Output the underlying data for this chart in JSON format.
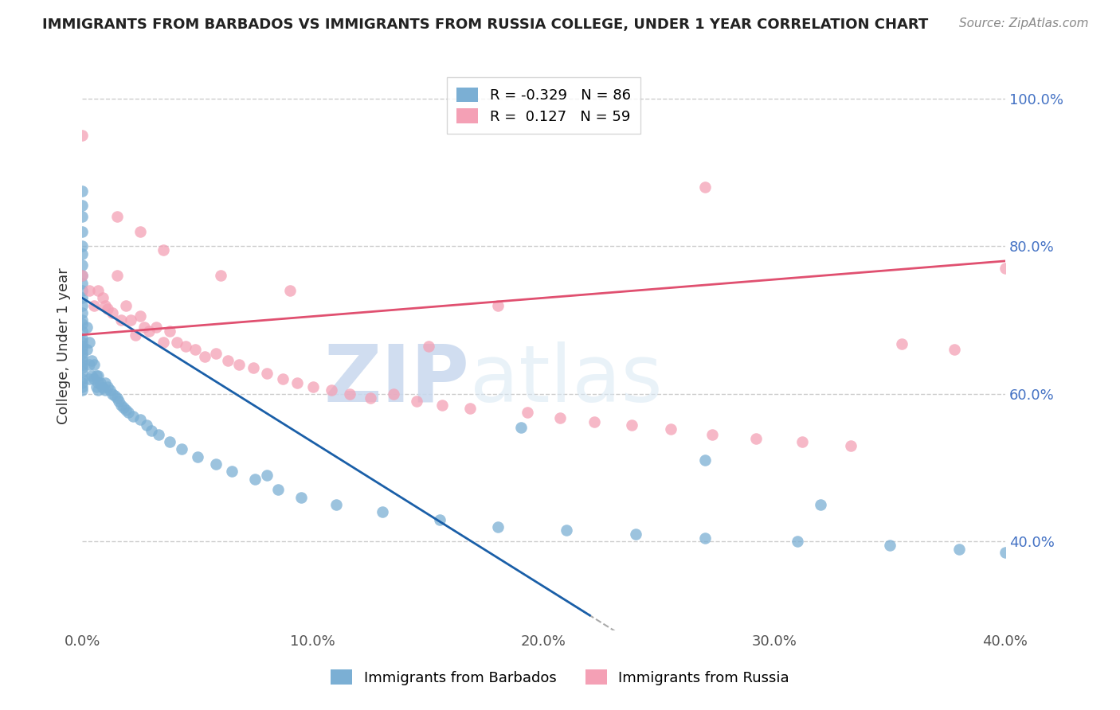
{
  "title": "IMMIGRANTS FROM BARBADOS VS IMMIGRANTS FROM RUSSIA COLLEGE, UNDER 1 YEAR CORRELATION CHART",
  "source": "Source: ZipAtlas.com",
  "ylabel": "College, Under 1 year",
  "xlim": [
    0.0,
    0.4
  ],
  "ylim": [
    0.28,
    1.05
  ],
  "yticks": [
    0.4,
    0.6,
    0.8,
    1.0
  ],
  "ytick_labels": [
    "40.0%",
    "60.0%",
    "80.0%",
    "100.0%"
  ],
  "xticks": [
    0.0,
    0.1,
    0.2,
    0.3,
    0.4
  ],
  "xtick_labels": [
    "0.0%",
    "10.0%",
    "20.0%",
    "30.0%",
    "40.0%"
  ],
  "barbados_R": -0.329,
  "barbados_N": 86,
  "russia_R": 0.127,
  "russia_N": 59,
  "barbados_color": "#7bafd4",
  "russia_color": "#f4a0b5",
  "trend_barbados_color": "#1a5fa8",
  "trend_russia_color": "#e05070",
  "watermark_zip": "ZIP",
  "watermark_atlas": "atlas",
  "barbados_x": [
    0.0,
    0.0,
    0.0,
    0.0,
    0.0,
    0.0,
    0.0,
    0.0,
    0.0,
    0.0,
    0.0,
    0.0,
    0.0,
    0.0,
    0.0,
    0.0,
    0.0,
    0.0,
    0.0,
    0.0,
    0.0,
    0.0,
    0.0,
    0.0,
    0.0,
    0.0,
    0.0,
    0.0,
    0.0,
    0.0,
    0.002,
    0.002,
    0.003,
    0.003,
    0.003,
    0.004,
    0.004,
    0.005,
    0.005,
    0.006,
    0.006,
    0.007,
    0.007,
    0.007,
    0.008,
    0.009,
    0.01,
    0.01,
    0.011,
    0.012,
    0.013,
    0.014,
    0.015,
    0.016,
    0.017,
    0.018,
    0.019,
    0.02,
    0.022,
    0.025,
    0.028,
    0.03,
    0.033,
    0.038,
    0.043,
    0.05,
    0.058,
    0.065,
    0.075,
    0.085,
    0.095,
    0.11,
    0.13,
    0.155,
    0.18,
    0.21,
    0.24,
    0.27,
    0.31,
    0.35,
    0.38,
    0.4,
    0.32,
    0.27,
    0.19,
    0.08
  ],
  "barbados_y": [
    0.875,
    0.855,
    0.84,
    0.82,
    0.8,
    0.79,
    0.775,
    0.76,
    0.75,
    0.74,
    0.73,
    0.72,
    0.71,
    0.7,
    0.695,
    0.685,
    0.675,
    0.67,
    0.665,
    0.66,
    0.655,
    0.65,
    0.645,
    0.64,
    0.635,
    0.63,
    0.62,
    0.615,
    0.61,
    0.605,
    0.69,
    0.66,
    0.64,
    0.62,
    0.67,
    0.645,
    0.625,
    0.64,
    0.62,
    0.625,
    0.61,
    0.615,
    0.605,
    0.625,
    0.615,
    0.608,
    0.615,
    0.605,
    0.61,
    0.605,
    0.6,
    0.598,
    0.595,
    0.59,
    0.585,
    0.582,
    0.578,
    0.575,
    0.57,
    0.565,
    0.558,
    0.55,
    0.545,
    0.535,
    0.525,
    0.515,
    0.505,
    0.495,
    0.485,
    0.47,
    0.46,
    0.45,
    0.44,
    0.43,
    0.42,
    0.415,
    0.41,
    0.405,
    0.4,
    0.395,
    0.39,
    0.385,
    0.45,
    0.51,
    0.555,
    0.49
  ],
  "russia_x": [
    0.0,
    0.0,
    0.003,
    0.005,
    0.007,
    0.009,
    0.01,
    0.011,
    0.013,
    0.015,
    0.017,
    0.019,
    0.021,
    0.023,
    0.025,
    0.027,
    0.029,
    0.032,
    0.035,
    0.038,
    0.041,
    0.045,
    0.049,
    0.053,
    0.058,
    0.063,
    0.068,
    0.074,
    0.08,
    0.087,
    0.093,
    0.1,
    0.108,
    0.116,
    0.125,
    0.135,
    0.145,
    0.156,
    0.168,
    0.18,
    0.193,
    0.207,
    0.222,
    0.238,
    0.255,
    0.273,
    0.292,
    0.312,
    0.333,
    0.355,
    0.378,
    0.4,
    0.015,
    0.025,
    0.035,
    0.06,
    0.09,
    0.15,
    0.27
  ],
  "russia_y": [
    0.95,
    0.76,
    0.74,
    0.72,
    0.74,
    0.73,
    0.72,
    0.715,
    0.71,
    0.76,
    0.7,
    0.72,
    0.7,
    0.68,
    0.705,
    0.69,
    0.685,
    0.69,
    0.67,
    0.685,
    0.67,
    0.665,
    0.66,
    0.65,
    0.655,
    0.645,
    0.64,
    0.635,
    0.628,
    0.62,
    0.615,
    0.61,
    0.605,
    0.6,
    0.595,
    0.6,
    0.59,
    0.585,
    0.58,
    0.72,
    0.575,
    0.568,
    0.562,
    0.558,
    0.552,
    0.545,
    0.54,
    0.535,
    0.53,
    0.668,
    0.66,
    0.77,
    0.84,
    0.82,
    0.795,
    0.76,
    0.74,
    0.665,
    0.88
  ]
}
